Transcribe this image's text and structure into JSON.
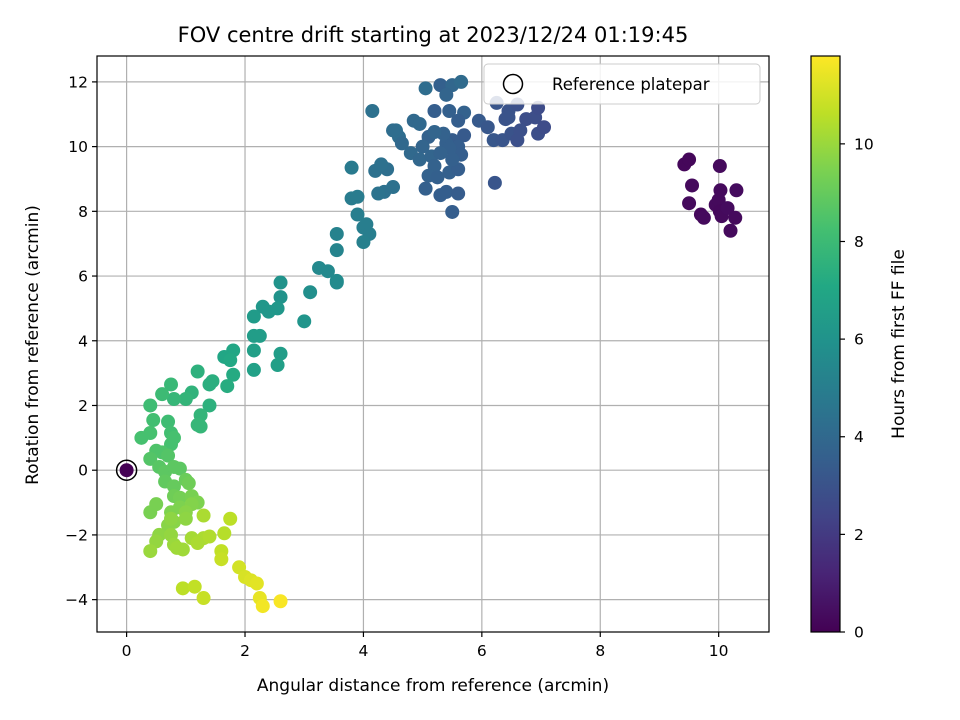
{
  "chart_data": {
    "type": "scatter",
    "title": "FOV centre drift starting at 2023/12/24 01:19:45",
    "xlabel": "Angular distance from reference (arcmin)",
    "ylabel": "Rotation from reference (arcmin)",
    "xlim": [
      -0.5,
      10.85
    ],
    "ylim": [
      -5.0,
      12.8
    ],
    "xticks": [
      0,
      2,
      4,
      6,
      8,
      10
    ],
    "yticks": [
      -4,
      -2,
      0,
      2,
      4,
      6,
      8,
      10,
      12
    ],
    "grid": true,
    "legend": {
      "position": "top-right",
      "entries": [
        "Reference platepar"
      ]
    },
    "colorbar": {
      "label": "Hours from first FF file",
      "colormap": "viridis",
      "range": [
        0,
        11.8
      ],
      "ticks": [
        0,
        2,
        4,
        6,
        8,
        10
      ]
    },
    "reference_point": {
      "x": 0,
      "y": 0,
      "c": 0
    },
    "points": [
      [
        9.42,
        9.45,
        0.2
      ],
      [
        9.5,
        9.6,
        0.2
      ],
      [
        9.55,
        8.8,
        0.3
      ],
      [
        9.5,
        8.25,
        0.3
      ],
      [
        9.7,
        7.9,
        0.25
      ],
      [
        9.75,
        7.8,
        0.3
      ],
      [
        9.95,
        8.2,
        0.3
      ],
      [
        10.0,
        8.35,
        0.3
      ],
      [
        10.02,
        8.0,
        0.25
      ],
      [
        10.05,
        7.85,
        0.3
      ],
      [
        10.03,
        8.65,
        0.3
      ],
      [
        10.02,
        9.4,
        0.3
      ],
      [
        10.15,
        8.1,
        0.35
      ],
      [
        10.2,
        7.4,
        0.3
      ],
      [
        10.28,
        7.8,
        0.3
      ],
      [
        10.3,
        8.65,
        0.35
      ],
      [
        5.3,
        11.9,
        3.6
      ],
      [
        5.5,
        11.9,
        3.9
      ],
      [
        5.65,
        12.0,
        4.1
      ],
      [
        5.4,
        11.6,
        3.8
      ],
      [
        5.2,
        11.1,
        3.5
      ],
      [
        5.45,
        11.1,
        3.6
      ],
      [
        5.7,
        11.05,
        3.7
      ],
      [
        5.05,
        11.8,
        4.2
      ],
      [
        4.15,
        11.1,
        4.4
      ],
      [
        5.6,
        10.8,
        3.5
      ],
      [
        5.95,
        10.8,
        3.3
      ],
      [
        6.1,
        10.6,
        3.2
      ],
      [
        5.7,
        10.35,
        3.3
      ],
      [
        5.5,
        10.2,
        3.4
      ],
      [
        5.6,
        10.0,
        3.5
      ],
      [
        5.4,
        10.1,
        3.6
      ],
      [
        5.1,
        10.3,
        3.7
      ],
      [
        5.0,
        10.0,
        3.8
      ],
      [
        4.85,
        10.8,
        4.0
      ],
      [
        4.95,
        10.7,
        4.0
      ],
      [
        4.55,
        10.5,
        4.3
      ],
      [
        4.6,
        10.3,
        4.2
      ],
      [
        4.5,
        10.5,
        4.2
      ],
      [
        4.65,
        10.1,
        4.0
      ],
      [
        4.8,
        9.8,
        4.0
      ],
      [
        4.95,
        9.6,
        3.9
      ],
      [
        5.15,
        9.7,
        3.8
      ],
      [
        5.2,
        9.4,
        3.7
      ],
      [
        5.1,
        9.1,
        3.7
      ],
      [
        5.25,
        9.05,
        3.6
      ],
      [
        5.45,
        9.2,
        3.6
      ],
      [
        5.6,
        9.3,
        3.5
      ],
      [
        5.65,
        9.75,
        3.5
      ],
      [
        5.35,
        10.4,
        3.7
      ],
      [
        5.2,
        10.45,
        3.8
      ],
      [
        5.45,
        9.95,
        3.6
      ],
      [
        5.3,
        9.8,
        3.7
      ],
      [
        5.5,
        9.6,
        3.6
      ],
      [
        5.05,
        8.7,
        3.6
      ],
      [
        5.3,
        8.5,
        3.5
      ],
      [
        5.4,
        8.6,
        3.5
      ],
      [
        5.6,
        8.55,
        3.4
      ],
      [
        5.5,
        7.98,
        3.5
      ],
      [
        6.22,
        8.88,
        3.1
      ],
      [
        6.25,
        11.35,
        3.1
      ],
      [
        6.2,
        10.2,
        3.2
      ],
      [
        6.35,
        10.2,
        3.1
      ],
      [
        6.4,
        10.85,
        3.0
      ],
      [
        6.45,
        11.1,
        3.0
      ],
      [
        6.5,
        10.4,
        3.0
      ],
      [
        6.6,
        10.2,
        2.9
      ],
      [
        6.6,
        11.3,
        2.9
      ],
      [
        6.75,
        10.85,
        2.8
      ],
      [
        6.9,
        10.9,
        2.8
      ],
      [
        6.95,
        11.2,
        2.7
      ],
      [
        6.95,
        10.4,
        2.8
      ],
      [
        7.05,
        10.6,
        2.7
      ],
      [
        6.65,
        10.5,
        2.9
      ],
      [
        6.45,
        10.9,
        3.0
      ],
      [
        4.2,
        9.25,
        4.4
      ],
      [
        4.4,
        9.3,
        4.3
      ],
      [
        4.35,
        8.6,
        4.4
      ],
      [
        4.5,
        8.75,
        4.4
      ],
      [
        4.25,
        8.55,
        4.5
      ],
      [
        4.3,
        9.45,
        4.4
      ],
      [
        3.8,
        9.35,
        4.8
      ],
      [
        3.8,
        8.4,
        4.9
      ],
      [
        3.9,
        8.45,
        4.9
      ],
      [
        3.9,
        7.9,
        5.0
      ],
      [
        4.0,
        7.5,
        5.0
      ],
      [
        4.05,
        7.6,
        5.0
      ],
      [
        4.1,
        7.3,
        5.0
      ],
      [
        4.0,
        7.05,
        5.1
      ],
      [
        3.55,
        7.3,
        5.2
      ],
      [
        3.55,
        6.8,
        5.3
      ],
      [
        3.25,
        6.25,
        5.5
      ],
      [
        3.4,
        6.15,
        5.5
      ],
      [
        3.55,
        5.85,
        5.6
      ],
      [
        3.55,
        5.8,
        5.6
      ],
      [
        3.1,
        5.5,
        5.8
      ],
      [
        2.6,
        5.8,
        6.0
      ],
      [
        2.6,
        5.35,
        6.0
      ],
      [
        2.3,
        5.05,
        6.2
      ],
      [
        2.4,
        4.9,
        6.2
      ],
      [
        2.55,
        5.0,
        6.2
      ],
      [
        3.0,
        4.6,
        6.1
      ],
      [
        2.15,
        4.75,
        6.4
      ],
      [
        2.15,
        4.15,
        6.5
      ],
      [
        2.25,
        4.15,
        6.5
      ],
      [
        2.15,
        3.7,
        6.6
      ],
      [
        2.6,
        3.6,
        6.5
      ],
      [
        2.55,
        3.25,
        6.6
      ],
      [
        2.15,
        3.1,
        6.7
      ],
      [
        1.8,
        3.7,
        7.0
      ],
      [
        1.65,
        3.5,
        7.0
      ],
      [
        1.75,
        3.4,
        7.1
      ],
      [
        1.8,
        2.95,
        7.2
      ],
      [
        1.7,
        2.6,
        7.3
      ],
      [
        1.45,
        2.75,
        7.4
      ],
      [
        1.4,
        2.65,
        7.4
      ],
      [
        1.2,
        3.05,
        7.5
      ],
      [
        1.1,
        2.4,
        7.6
      ],
      [
        1.0,
        2.2,
        7.7
      ],
      [
        0.8,
        2.2,
        7.8
      ],
      [
        0.75,
        2.65,
        7.9
      ],
      [
        0.6,
        2.35,
        8.0
      ],
      [
        0.4,
        2.0,
        8.1
      ],
      [
        1.4,
        2.0,
        7.5
      ],
      [
        1.25,
        1.7,
        7.7
      ],
      [
        1.2,
        1.4,
        7.8
      ],
      [
        1.25,
        1.35,
        7.8
      ],
      [
        0.7,
        1.5,
        8.1
      ],
      [
        0.45,
        1.55,
        8.2
      ],
      [
        0.4,
        1.15,
        8.3
      ],
      [
        0.25,
        1.0,
        8.3
      ],
      [
        0.75,
        1.15,
        8.2
      ],
      [
        0.8,
        1.0,
        8.3
      ],
      [
        0.75,
        0.8,
        8.3
      ],
      [
        0.5,
        0.6,
        8.5
      ],
      [
        0.6,
        0.55,
        8.5
      ],
      [
        0.4,
        0.35,
        8.6
      ],
      [
        0.55,
        0.1,
        8.7
      ],
      [
        0.7,
        0.45,
        8.6
      ],
      [
        0.65,
        -0.05,
        8.8
      ],
      [
        0.8,
        0.1,
        8.8
      ],
      [
        0.9,
        0.05,
        8.8
      ],
      [
        0.65,
        -0.35,
        8.9
      ],
      [
        0.8,
        -0.5,
        9.0
      ],
      [
        1.0,
        -0.3,
        9.1
      ],
      [
        1.05,
        -0.4,
        9.2
      ],
      [
        0.8,
        -0.8,
        9.2
      ],
      [
        0.9,
        -0.85,
        9.3
      ],
      [
        0.5,
        -1.05,
        9.4
      ],
      [
        0.4,
        -1.3,
        9.4
      ],
      [
        0.75,
        -1.3,
        9.5
      ],
      [
        0.9,
        -1.15,
        9.5
      ],
      [
        1.1,
        -0.8,
        9.4
      ],
      [
        1.2,
        -1.0,
        9.5
      ],
      [
        1.1,
        -1.05,
        9.6
      ],
      [
        0.7,
        -1.7,
        9.7
      ],
      [
        0.8,
        -1.6,
        9.7
      ],
      [
        1.0,
        -1.3,
        9.7
      ],
      [
        1.0,
        -1.5,
        9.8
      ],
      [
        0.55,
        -2.0,
        9.8
      ],
      [
        0.5,
        -2.2,
        9.9
      ],
      [
        0.4,
        -2.5,
        10.0
      ],
      [
        0.75,
        -2.0,
        9.9
      ],
      [
        0.8,
        -2.3,
        10.0
      ],
      [
        0.95,
        -2.45,
        10.1
      ],
      [
        0.85,
        -2.4,
        10.1
      ],
      [
        0.75,
        -1.5,
        9.8
      ],
      [
        1.1,
        -2.1,
        10.2
      ],
      [
        1.3,
        -2.1,
        10.3
      ],
      [
        1.2,
        -2.25,
        10.3
      ],
      [
        1.4,
        -2.05,
        10.4
      ],
      [
        1.3,
        -1.4,
        10.3
      ],
      [
        1.65,
        -1.95,
        10.5
      ],
      [
        1.75,
        -1.5,
        10.6
      ],
      [
        1.6,
        -2.5,
        10.7
      ],
      [
        1.6,
        -2.75,
        10.8
      ],
      [
        1.9,
        -3.0,
        11.0
      ],
      [
        2.0,
        -3.3,
        11.1
      ],
      [
        2.1,
        -3.4,
        11.2
      ],
      [
        2.2,
        -3.5,
        11.3
      ],
      [
        2.25,
        -3.95,
        11.4
      ],
      [
        2.3,
        -4.2,
        11.6
      ],
      [
        2.6,
        -4.05,
        11.7
      ],
      [
        0.95,
        -3.65,
        10.6
      ],
      [
        1.15,
        -3.6,
        10.7
      ],
      [
        1.3,
        -3.95,
        10.8
      ]
    ]
  }
}
